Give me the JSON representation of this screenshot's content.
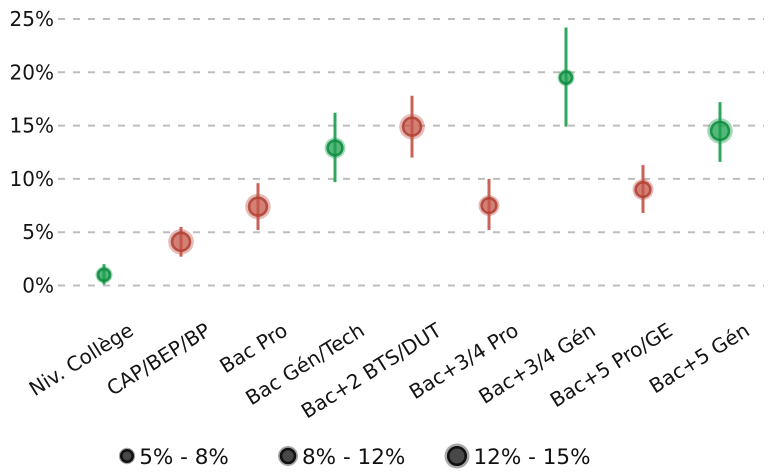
{
  "chart_data": {
    "type": "scatter",
    "subtype": "dot-plot-with-error-bars",
    "title": "",
    "xlabel": "",
    "ylabel": "",
    "grid": "dashed-horizontal-only",
    "ylim": [
      0,
      25
    ],
    "y_ticks": [
      {
        "value": 25,
        "label": "25%"
      },
      {
        "value": 20,
        "label": "20%"
      },
      {
        "value": 15,
        "label": "15%"
      },
      {
        "value": 10,
        "label": "10%"
      },
      {
        "value": 5,
        "label": "5%"
      },
      {
        "value": 0,
        "label": "0%"
      }
    ],
    "categories": [
      "Niv. Collège",
      "CAP/BEP/BP",
      "Bac Pro",
      "Bac Gén/Tech",
      "Bac+2 BTS/DUT",
      "Bac+3/4 Pro",
      "Bac+3/4 Gén",
      "Bac+5 Pro/GE",
      "Bac+5 Gén"
    ],
    "series": [
      {
        "name": "rate-by-education-level",
        "points": [
          {
            "category": "Niv. Collège",
            "value": 1.0,
            "ci_low": 0.1,
            "ci_high": 2.0,
            "color": "green",
            "size_class": "small"
          },
          {
            "category": "CAP/BEP/BP",
            "value": 4.1,
            "ci_low": 2.7,
            "ci_high": 5.5,
            "color": "red",
            "size_class": "large"
          },
          {
            "category": "Bac Pro",
            "value": 7.4,
            "ci_low": 5.2,
            "ci_high": 9.6,
            "color": "red",
            "size_class": "large"
          },
          {
            "category": "Bac Gén/Tech",
            "value": 12.9,
            "ci_low": 9.7,
            "ci_high": 16.2,
            "color": "green",
            "size_class": "medium"
          },
          {
            "category": "Bac+2 BTS/DUT",
            "value": 14.9,
            "ci_low": 12.0,
            "ci_high": 17.8,
            "color": "red",
            "size_class": "large"
          },
          {
            "category": "Bac+3/4 Pro",
            "value": 7.5,
            "ci_low": 5.2,
            "ci_high": 10.0,
            "color": "red",
            "size_class": "medium"
          },
          {
            "category": "Bac+3/4 Gén",
            "value": 19.5,
            "ci_low": 14.9,
            "ci_high": 24.2,
            "color": "green",
            "size_class": "small"
          },
          {
            "category": "Bac+5 Pro/GE",
            "value": 9.0,
            "ci_low": 6.8,
            "ci_high": 11.3,
            "color": "red",
            "size_class": "medium"
          },
          {
            "category": "Bac+5 Gén",
            "value": 14.5,
            "ci_low": 11.6,
            "ci_high": 17.2,
            "color": "green",
            "size_class": "large"
          }
        ]
      }
    ],
    "legend": {
      "position": "bottom",
      "encodes": "bubble-size",
      "items": [
        {
          "label": "5% - 8%",
          "size_class": "small"
        },
        {
          "label": "8% - 12%",
          "size_class": "medium"
        },
        {
          "label": "12% - 15%",
          "size_class": "large"
        }
      ]
    },
    "colors": {
      "green": "#1da150",
      "green_dark": "#0e8a3e",
      "red": "#c4564a",
      "red_dark": "#b03f33",
      "legend_fill": "#3d3d3d",
      "legend_dark": "#101010",
      "grid": "#bdbdbd",
      "text": "#141414"
    },
    "marker_halo_radius_px": {
      "small": 8.5,
      "medium": 10.5,
      "large": 12.8
    },
    "legend_halo_radius_px": {
      "small": 8.2,
      "medium": 10.0,
      "large": 12.5
    }
  }
}
